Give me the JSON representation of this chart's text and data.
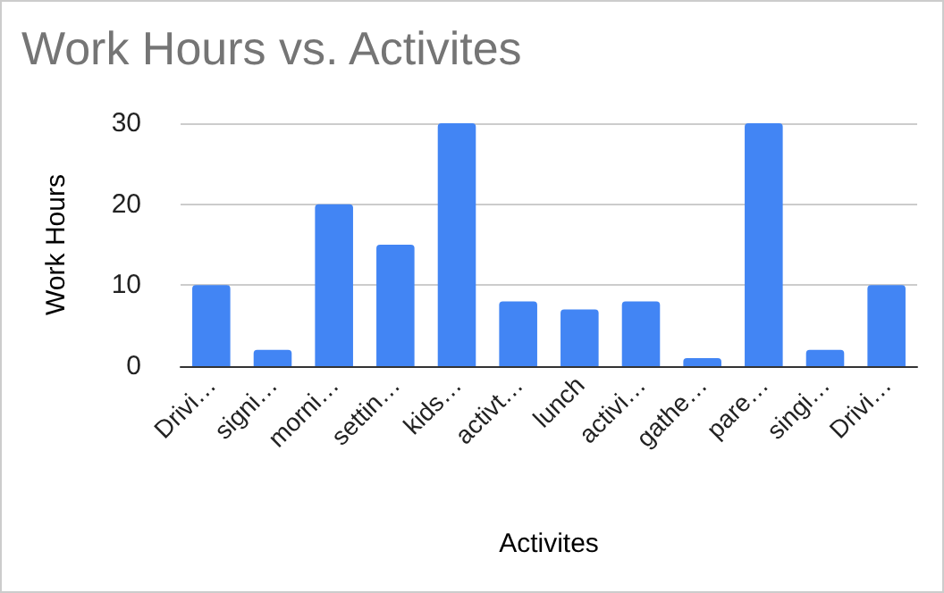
{
  "chart_data": {
    "type": "bar",
    "title": "Work Hours vs. Activites",
    "xlabel": "Activites",
    "ylabel": "Work Hours",
    "categories": [
      "Drivi…",
      "signi…",
      "morni…",
      "settin…",
      "kids…",
      "activt…",
      "lunch",
      "activi…",
      "gathe…",
      "pare…",
      "singi…",
      "Drivi…"
    ],
    "values": [
      10,
      2,
      20,
      15,
      30,
      8,
      7,
      8,
      1,
      30,
      2,
      10
    ],
    "color": "#4285f4",
    "ylim": [
      0,
      30
    ],
    "yticks": [
      0,
      10,
      20,
      30
    ],
    "grid": "y"
  }
}
